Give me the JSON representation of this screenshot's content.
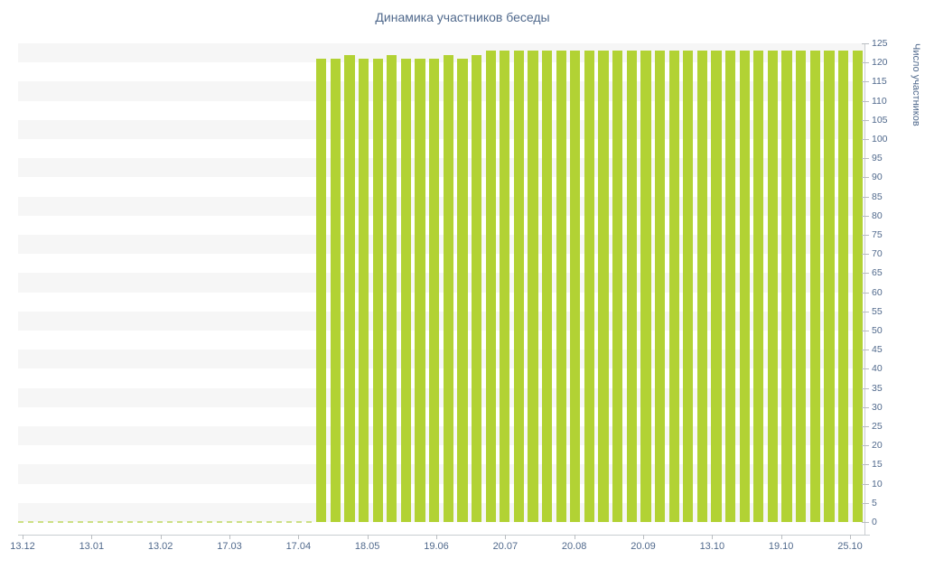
{
  "chart_data": {
    "type": "bar",
    "title": "Динамика участников беседы",
    "xlabel": "",
    "ylabel": "Число участников",
    "ylim": [
      0,
      125
    ],
    "y_tick_step": 5,
    "y_ticks": [
      0,
      5,
      10,
      15,
      20,
      25,
      30,
      35,
      40,
      45,
      50,
      55,
      60,
      65,
      70,
      75,
      80,
      85,
      90,
      95,
      100,
      105,
      110,
      115,
      120,
      125
    ],
    "x_tick_labels": [
      "13.12",
      "13.01",
      "13.02",
      "17.03",
      "17.04",
      "18.05",
      "19.06",
      "20.07",
      "20.08",
      "20.09",
      "13.10",
      "19.10",
      "25.10"
    ],
    "values": [
      0,
      0,
      0,
      0,
      0,
      0,
      0,
      0,
      0,
      0,
      0,
      0,
      0,
      0,
      0,
      0,
      0,
      0,
      0,
      0,
      0,
      121,
      121,
      122,
      121,
      121,
      122,
      121,
      121,
      121,
      122,
      121,
      122,
      123,
      123,
      123,
      123,
      123,
      123,
      123,
      123,
      123,
      123,
      123,
      123,
      123,
      123,
      123,
      123,
      123,
      123,
      123,
      123,
      123,
      123,
      123,
      123,
      123,
      123,
      123
    ],
    "grid": "horizontal-bands",
    "legend": false,
    "colors": {
      "bar": "#b2d234",
      "zero_line": "#cde085",
      "text": "#50698c",
      "stripe": "#f6f6f6",
      "axis": "#c9cdd1"
    }
  }
}
